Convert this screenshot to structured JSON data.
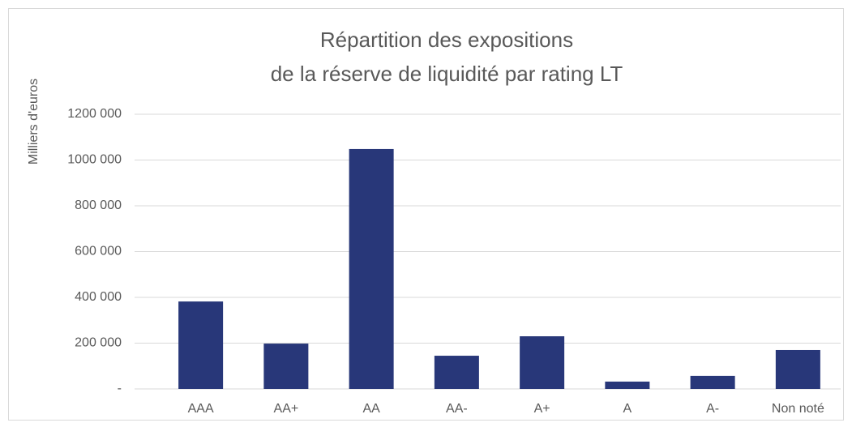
{
  "chart_data": {
    "type": "bar",
    "title": [
      "Répartition des expositions",
      "de la réserve de liquidité par rating LT"
    ],
    "y_label": "Milliers d'euros",
    "categories": [
      "AAA",
      "AA+",
      "AA",
      "AA-",
      "A+",
      "A",
      "A-",
      "Non noté"
    ],
    "values": [
      382000,
      198000,
      1048000,
      145000,
      230000,
      32000,
      57000,
      170000
    ],
    "color": "#283779",
    "ylim": [
      0,
      1200000
    ],
    "yticks": [
      {
        "value": 0,
        "label": "-"
      },
      {
        "value": 200000,
        "label": "200 000"
      },
      {
        "value": 400000,
        "label": "400 000"
      },
      {
        "value": 600000,
        "label": "600 000"
      },
      {
        "value": 800000,
        "label": "800 000"
      },
      {
        "value": 1000000,
        "label": "1000 000"
      },
      {
        "value": 1200000,
        "label": "1200 000"
      }
    ],
    "grid": true
  }
}
